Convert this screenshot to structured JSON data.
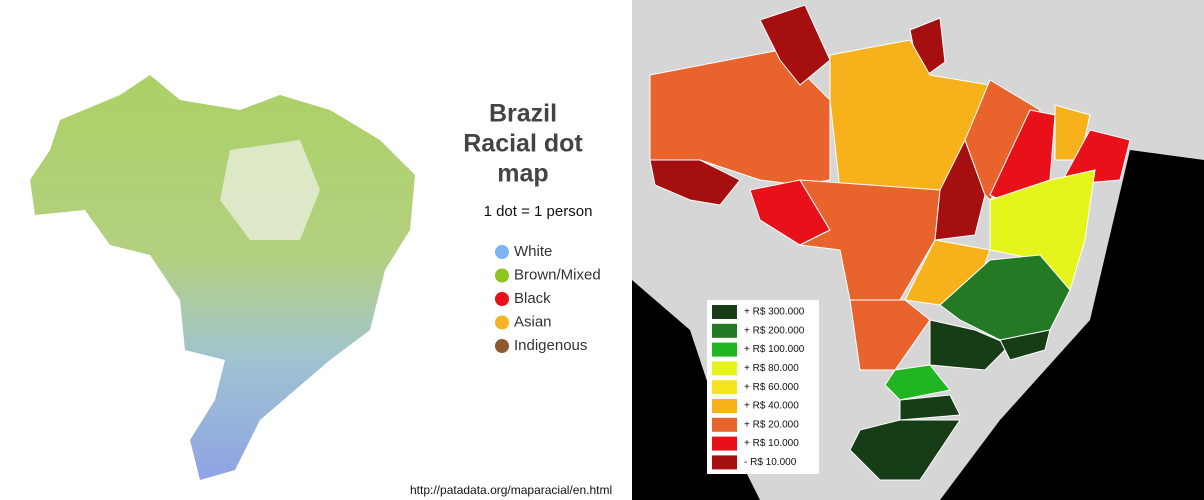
{
  "left_panel": {
    "title_lines": [
      "Brazil",
      "Racial dot",
      "map"
    ],
    "subtitle": "1 dot = 1 person",
    "legend": [
      {
        "label": "White",
        "color": "#7fb2f0"
      },
      {
        "label": "Brown/Mixed",
        "color": "#8fc31f"
      },
      {
        "label": "Black",
        "color": "#e8111a"
      },
      {
        "label": "Asian",
        "color": "#f7b228"
      },
      {
        "label": "Indigenous",
        "color": "#8c5a2e"
      }
    ],
    "source_url": "http://patadata.org/maparacial/en.html"
  },
  "right_panel": {
    "legend": [
      {
        "label": "+ R$ 300.000",
        "color": "#173d17"
      },
      {
        "label": "+ R$ 200.000",
        "color": "#247a24"
      },
      {
        "label": "+ R$ 100.000",
        "color": "#22b522"
      },
      {
        "label": "+ R$ 80.000",
        "color": "#e5f51c"
      },
      {
        "label": "+ R$ 60.000",
        "color": "#f5e51c"
      },
      {
        "label": "+ R$ 40.000",
        "color": "#f7b21b"
      },
      {
        "label": "+ R$ 20.000",
        "color": "#e8642c"
      },
      {
        "label": "+ R$ 10.000",
        "color": "#e8111a"
      },
      {
        "label": "- R$ 10.000",
        "color": "#a50f0f"
      }
    ]
  }
}
